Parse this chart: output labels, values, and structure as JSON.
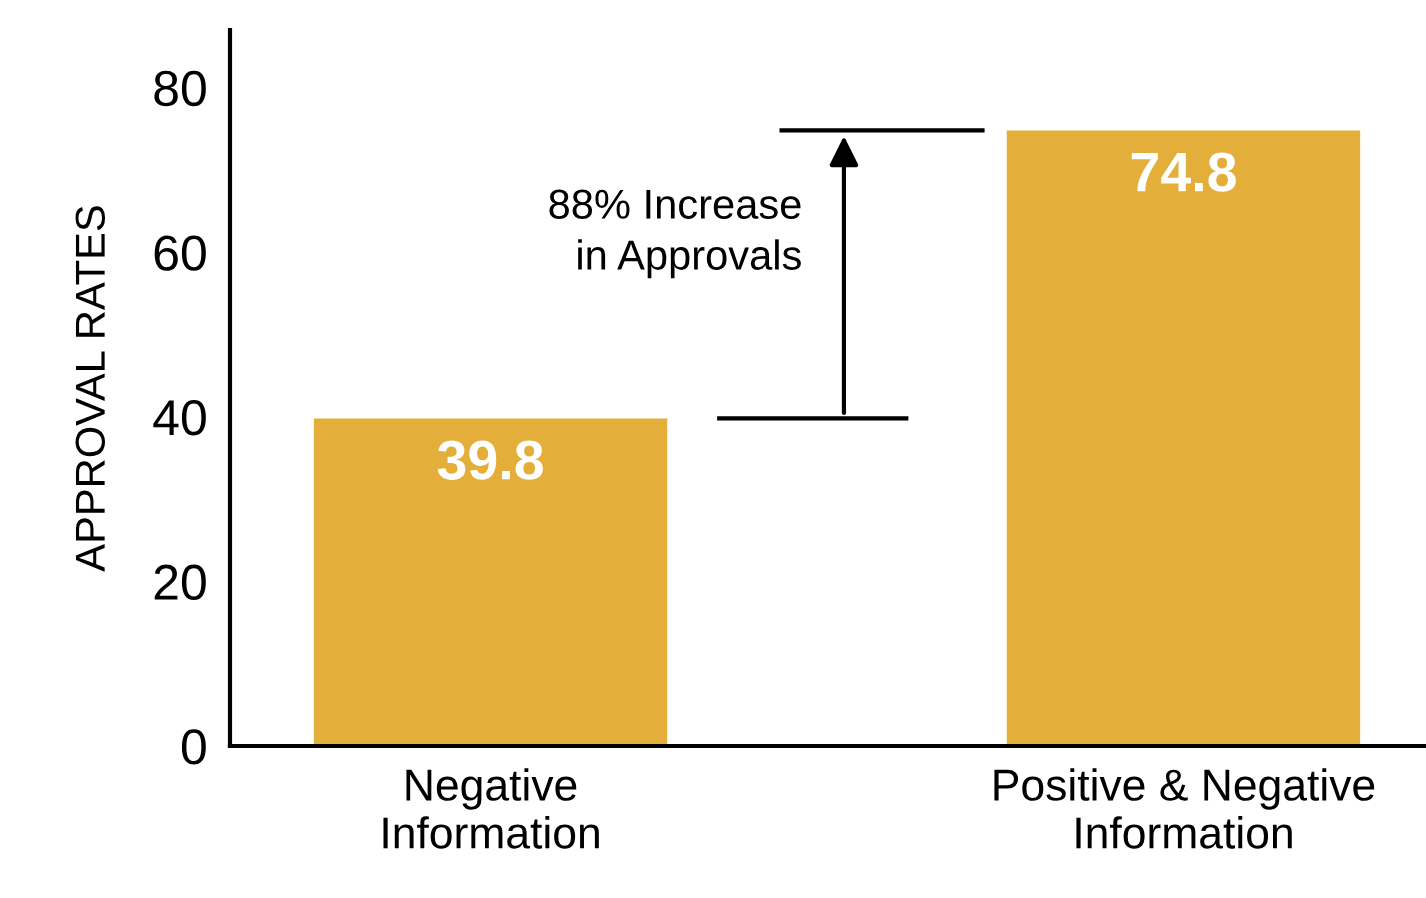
{
  "chart_data": {
    "type": "bar",
    "ylabel": "APPROVAL RATES",
    "categories": [
      "Negative\nInformation",
      "Positive & Negative\nInformation"
    ],
    "values": [
      39.8,
      74.8
    ],
    "color": "#e3ae3a",
    "ylim": [
      0,
      87
    ],
    "yticks": [
      0,
      20,
      40,
      60,
      80
    ],
    "data_labels": true,
    "grid": false,
    "legend": false,
    "annotations": [
      "88% Increase\nin Approvals"
    ]
  }
}
